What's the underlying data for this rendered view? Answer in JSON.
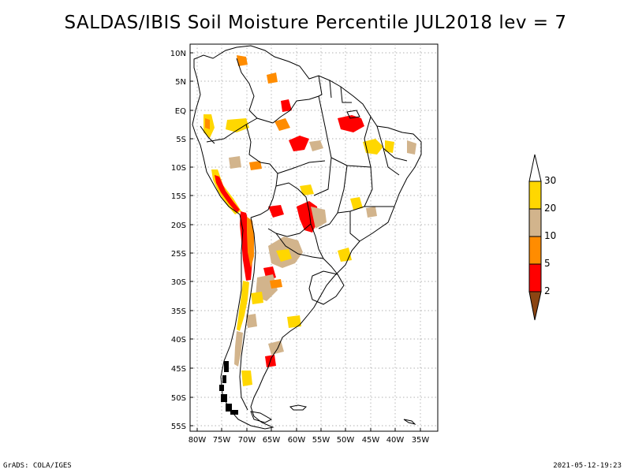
{
  "title": "SALDAS/IBIS Soil Moisture Percentile JUL2018 lev = 7",
  "lat_labels": [
    "10N",
    "5N",
    "EQ",
    "5S",
    "10S",
    "15S",
    "20S",
    "25S",
    "30S",
    "35S",
    "40S",
    "45S",
    "50S",
    "55S"
  ],
  "lon_labels": [
    "80W",
    "75W",
    "70W",
    "65W",
    "60W",
    "55W",
    "50W",
    "45W",
    "40W",
    "35W"
  ],
  "colorbar": {
    "labels": [
      "2",
      "5",
      "10",
      "20",
      "30"
    ],
    "colors": {
      "lt2": "#8b4513",
      "c2_5": "#ff0000",
      "c5_10": "#ff8c00",
      "c10_20": "#d2b48c",
      "c20_30": "#ffd700",
      "gt30": "#ffffff"
    }
  },
  "footer": {
    "left": "GrADS: COLA/IGES",
    "right": "2021-05-12-19:23"
  }
}
